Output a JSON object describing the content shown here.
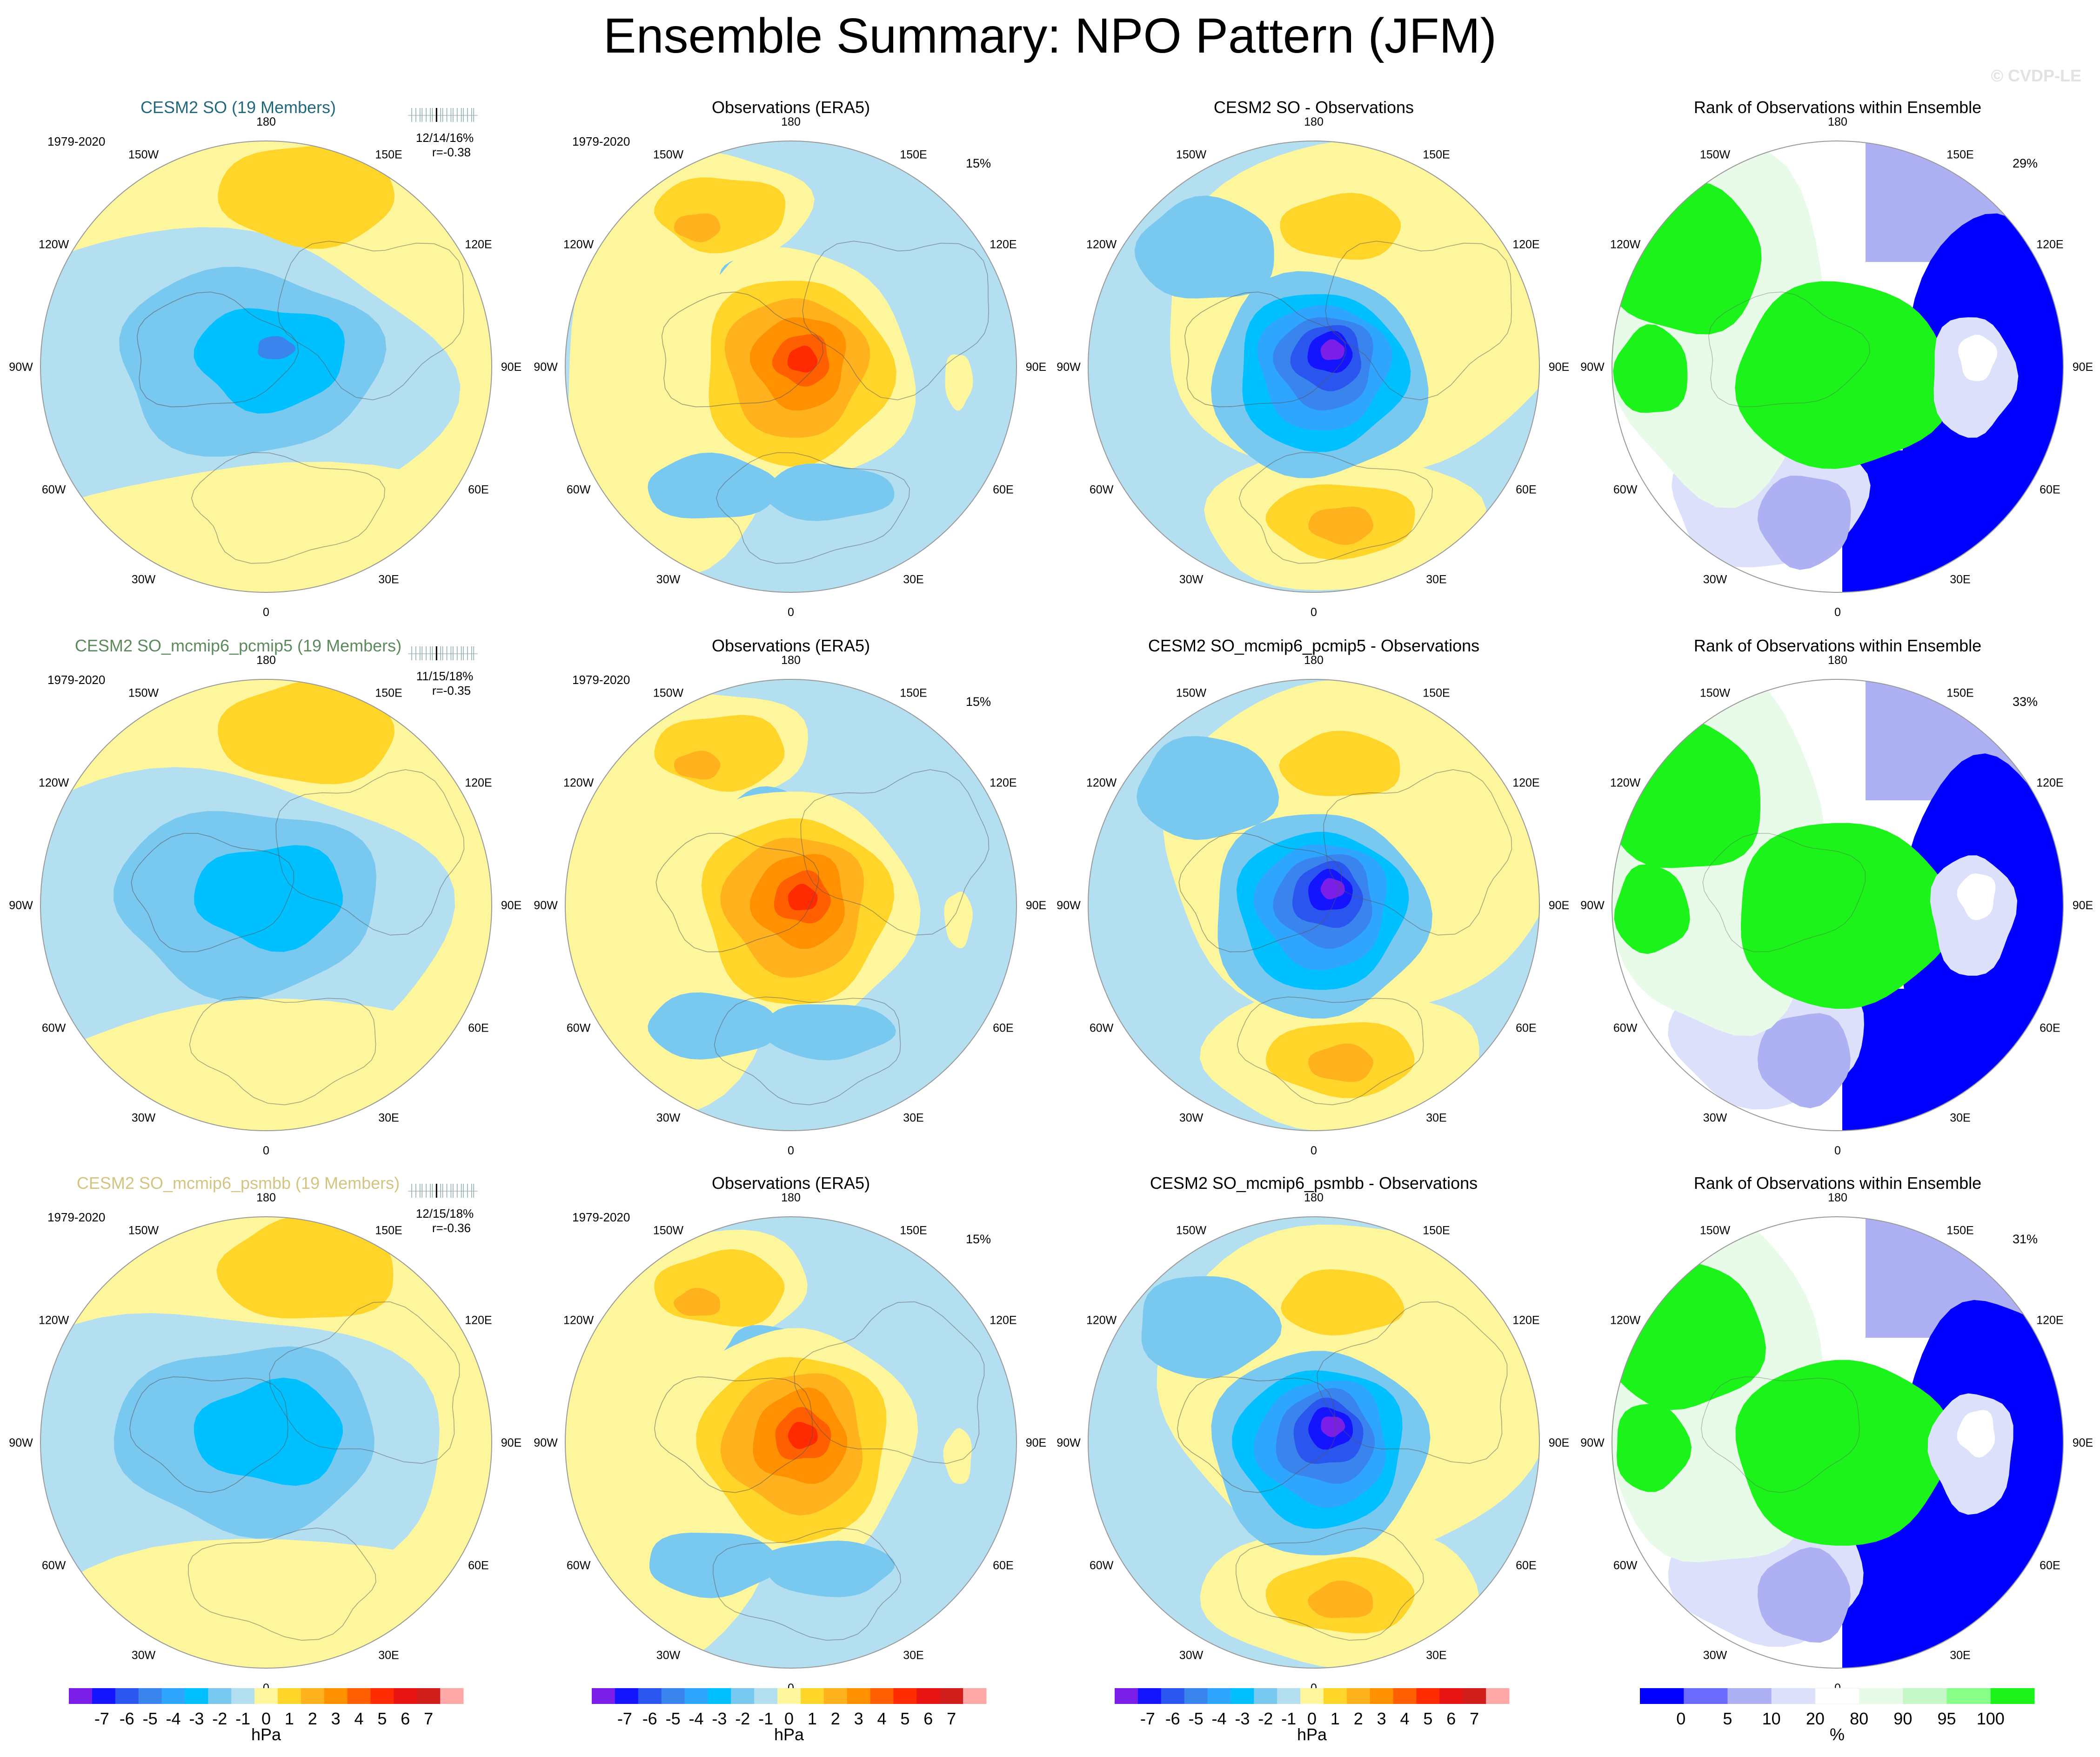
{
  "title": "Ensemble Summary: NPO Pattern (JFM)",
  "watermark": "© CVDP-LE",
  "longitude_labels": [
    "180",
    "150E",
    "120E",
    "90E",
    "60E",
    "30E",
    "0",
    "30W",
    "60W",
    "90W",
    "120W",
    "150W"
  ],
  "colors": {
    "pressure_scale": [
      "#7a1ee8",
      "#1414ff",
      "#2a55ee",
      "#3a84ee",
      "#2ea6ff",
      "#00c0ff",
      "#78c8ef",
      "#b4dff1",
      "#fef69d",
      "#ffd52a",
      "#ffb21e",
      "#ff9000",
      "#ff5f00",
      "#ff2a00",
      "#e81414",
      "#d21d1d",
      "#ffa8a8"
    ],
    "rank_scale": [
      "#0000ff",
      "#6b6bff",
      "#aeb0f4",
      "#dde0fa",
      "#ffffff",
      "#e8fbe8",
      "#c6f7c6",
      "#88ff88",
      "#1bf31b"
    ],
    "model_title_row1": "#23687d",
    "model_title_row2": "#5c8a5c",
    "model_title_row3": "#d4c482"
  },
  "chart_data": {
    "type": "polar-map-panels",
    "rows": [
      {
        "model": {
          "title": "CESM2 SO (19 Members)",
          "period": "1979-2020",
          "stats": "12/14/16%",
          "r": "r=-0.38"
        },
        "obs": {
          "title": "Observations (ERA5)",
          "period": "1979-2020",
          "pct": "15%"
        },
        "diff": {
          "title": "CESM2 SO - Observations"
        },
        "rank": {
          "title": "Rank of Observations within Ensemble",
          "pct": "29%"
        }
      },
      {
        "model": {
          "title": "CESM2 SO_mcmip6_pcmip5 (19 Members)",
          "period": "1979-2020",
          "stats": "11/15/18%",
          "r": "r=-0.35"
        },
        "obs": {
          "title": "Observations (ERA5)",
          "period": "1979-2020",
          "pct": "15%"
        },
        "diff": {
          "title": "CESM2 SO_mcmip6_pcmip5 - Observations"
        },
        "rank": {
          "title": "Rank of Observations within Ensemble",
          "pct": "33%"
        }
      },
      {
        "model": {
          "title": "CESM2 SO_mcmip6_psmbb (19 Members)",
          "period": "1979-2020",
          "stats": "12/15/18%",
          "r": "r=-0.36"
        },
        "obs": {
          "title": "Observations (ERA5)",
          "period": "1979-2020",
          "pct": "15%"
        },
        "diff": {
          "title": "CESM2 SO_mcmip6_psmbb - Observations"
        },
        "rank": {
          "title": "Rank of Observations within Ensemble",
          "pct": "31%"
        }
      }
    ],
    "colorbars": {
      "pressure": {
        "labels": [
          "-7",
          "-6",
          "-5",
          "-4",
          "-3",
          "-2",
          "-1",
          "0",
          "1",
          "2",
          "3",
          "4",
          "5",
          "6",
          "7"
        ],
        "unit": "hPa"
      },
      "rank": {
        "labels": [
          "0",
          "5",
          "10",
          "20",
          "80",
          "90",
          "95",
          "100"
        ],
        "unit": "%"
      }
    }
  }
}
